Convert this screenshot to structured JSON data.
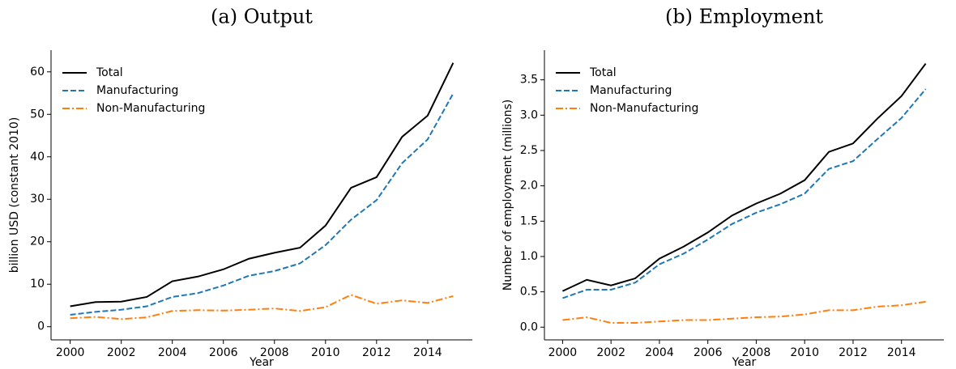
{
  "chart_data": [
    {
      "type": "line",
      "title": "(a) Output",
      "x_label": "Year",
      "y_label": "billion USD (constant 2010)",
      "x": [
        2000,
        2001,
        2002,
        2003,
        2004,
        2005,
        2006,
        2007,
        2008,
        2009,
        2010,
        2011,
        2012,
        2013,
        2014,
        2015
      ],
      "series": [
        {
          "name": "Total",
          "color": "#000000",
          "dash": "solid",
          "values": [
            4.8,
            5.8,
            5.9,
            7.0,
            10.7,
            11.8,
            13.5,
            16.0,
            17.4,
            18.6,
            23.8,
            32.7,
            35.2,
            44.7,
            49.7,
            62.1
          ]
        },
        {
          "name": "Manufacturing",
          "color": "#1f77b4",
          "dash": "dashed",
          "values": [
            2.8,
            3.5,
            4.0,
            4.8,
            7.0,
            7.9,
            9.7,
            12.0,
            13.1,
            14.9,
            19.2,
            25.2,
            29.8,
            38.5,
            44.1,
            54.9
          ]
        },
        {
          "name": "Non-Manufacturing",
          "color": "#ff7f0e",
          "dash": "dashdot",
          "values": [
            2.0,
            2.3,
            1.8,
            2.2,
            3.7,
            3.9,
            3.8,
            4.0,
            4.3,
            3.7,
            4.6,
            7.5,
            5.4,
            6.2,
            5.6,
            7.2
          ]
        }
      ],
      "xlim": [
        1999.25,
        2015.75
      ],
      "xticks": [
        2000,
        2002,
        2004,
        2006,
        2008,
        2010,
        2012,
        2014
      ],
      "ylim": [
        -3.1,
        65.1
      ],
      "yticks": [
        0,
        10,
        20,
        30,
        40,
        50,
        60
      ],
      "legend": "upper left",
      "grid": false
    },
    {
      "type": "line",
      "title": "(b) Employment",
      "x_label": "Year",
      "y_label": "Number of employment (millions)",
      "x": [
        2000,
        2001,
        2002,
        2003,
        2004,
        2005,
        2006,
        2007,
        2008,
        2009,
        2010,
        2011,
        2012,
        2013,
        2014,
        2015
      ],
      "series": [
        {
          "name": "Total",
          "color": "#000000",
          "dash": "solid",
          "values": [
            0.51,
            0.67,
            0.59,
            0.69,
            0.97,
            1.14,
            1.34,
            1.58,
            1.75,
            1.89,
            2.08,
            2.48,
            2.6,
            2.95,
            3.27,
            3.73
          ]
        },
        {
          "name": "Manufacturing",
          "color": "#1f77b4",
          "dash": "dashed",
          "values": [
            0.41,
            0.53,
            0.53,
            0.63,
            0.89,
            1.04,
            1.24,
            1.46,
            1.62,
            1.74,
            1.89,
            2.24,
            2.35,
            2.66,
            2.96,
            3.37
          ]
        },
        {
          "name": "Non-Manufacturing",
          "color": "#ff7f0e",
          "dash": "dashdot",
          "values": [
            0.1,
            0.14,
            0.06,
            0.06,
            0.08,
            0.1,
            0.1,
            0.12,
            0.14,
            0.15,
            0.18,
            0.24,
            0.24,
            0.29,
            0.31,
            0.36
          ]
        }
      ],
      "xlim": [
        1999.25,
        2015.75
      ],
      "xticks": [
        2000,
        2002,
        2004,
        2006,
        2008,
        2010,
        2012,
        2014
      ],
      "ylim": [
        -0.18,
        3.92
      ],
      "yticks": [
        {
          "value": 0,
          "label": "0.0"
        },
        0.5,
        {
          "value": 1,
          "label": "1.0"
        },
        1.5,
        {
          "value": 2,
          "label": "2.0"
        },
        2.5,
        {
          "value": 3,
          "label": "3.0"
        },
        3.5
      ],
      "legend": "upper left",
      "grid": false
    }
  ]
}
